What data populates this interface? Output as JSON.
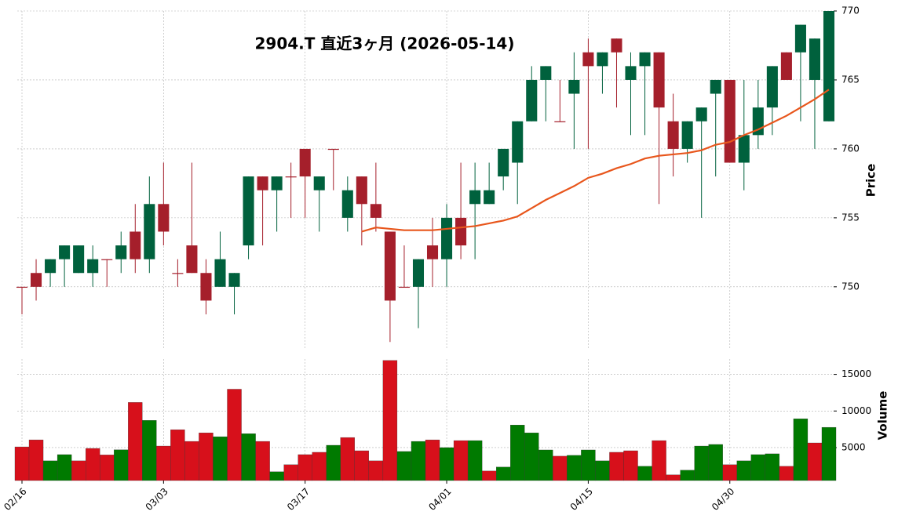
{
  "chart_data": {
    "type": "candlestick",
    "title": "2904.T  直近3ヶ月  (2026-05-14)",
    "ylabel": "Price",
    "volume_label": "Volume",
    "categories": [
      "02/16",
      null,
      null,
      null,
      null,
      null,
      null,
      null,
      null,
      null,
      "03/03",
      null,
      null,
      null,
      null,
      null,
      null,
      null,
      null,
      null,
      "03/17",
      null,
      null,
      null,
      null,
      null,
      null,
      null,
      null,
      null,
      "04/01",
      null,
      null,
      null,
      null,
      null,
      null,
      null,
      null,
      null,
      "04/15",
      null,
      null,
      null,
      null,
      null,
      null,
      null,
      null,
      null,
      "04/30",
      null,
      null,
      null,
      null,
      null,
      null,
      null
    ],
    "open": [
      750,
      751,
      751,
      752,
      751,
      751,
      752,
      752,
      754,
      752,
      756,
      751,
      753,
      751,
      750,
      750,
      753,
      758,
      757,
      758,
      760,
      757,
      760,
      755,
      758,
      756,
      754,
      750,
      750,
      753,
      752,
      755,
      756,
      756,
      758,
      759,
      762,
      765,
      762,
      764,
      767,
      766,
      768,
      765,
      766,
      767,
      762,
      760,
      762,
      764,
      765,
      759,
      761,
      763,
      767,
      767,
      765,
      762
    ],
    "high": [
      750,
      752,
      752,
      753,
      753,
      753,
      752,
      754,
      756,
      758,
      759,
      752,
      759,
      752,
      754,
      751,
      758,
      758,
      758,
      759,
      760,
      758,
      760,
      758,
      758,
      759,
      754,
      753,
      752,
      755,
      756,
      759,
      759,
      759,
      760,
      762,
      766,
      766,
      765,
      767,
      768,
      767,
      768,
      767,
      767,
      767,
      764,
      762,
      763,
      765,
      765,
      765,
      765,
      766,
      767,
      769,
      768,
      770
    ],
    "low": [
      748,
      749,
      750,
      750,
      751,
      750,
      750,
      751,
      751,
      751,
      753,
      750,
      751,
      748,
      750,
      748,
      752,
      753,
      754,
      755,
      755,
      754,
      757,
      754,
      753,
      754,
      746,
      750,
      747,
      750,
      750,
      752,
      752,
      756,
      757,
      756,
      762,
      762,
      762,
      760,
      760,
      764,
      763,
      761,
      761,
      756,
      758,
      759,
      755,
      758,
      759,
      757,
      760,
      761,
      765,
      762,
      760,
      762
    ],
    "close": [
      750,
      750,
      752,
      753,
      753,
      752,
      752,
      753,
      752,
      756,
      754,
      751,
      751,
      749,
      752,
      751,
      758,
      757,
      758,
      758,
      758,
      758,
      760,
      757,
      756,
      755,
      749,
      750,
      752,
      752,
      755,
      753,
      757,
      757,
      760,
      762,
      765,
      766,
      762,
      765,
      766,
      767,
      767,
      766,
      767,
      763,
      760,
      762,
      763,
      765,
      759,
      761,
      763,
      766,
      765,
      769,
      768,
      770
    ],
    "volume": [
      5100,
      6060,
      3190,
      4040,
      3190,
      4890,
      4000,
      4700,
      11170,
      8720,
      5210,
      7450,
      5850,
      7020,
      6490,
      12980,
      6910,
      5850,
      1700,
      2660,
      4040,
      4360,
      5320,
      6380,
      4570,
      3190,
      16910,
      4470,
      5850,
      6060,
      5000,
      5960,
      5960,
      1800,
      2340,
      8090,
      7020,
      4680,
      3830,
      3940,
      4680,
      3190,
      4360,
      4570,
      2450,
      5960,
      1280,
      1910,
      5210,
      5430,
      2660,
      3190,
      4040,
      4150,
      2450,
      8940,
      5640,
      7770
    ],
    "moving_average": {
      "color": "#e8561c",
      "values": [
        null,
        null,
        null,
        null,
        null,
        null,
        null,
        null,
        null,
        null,
        null,
        null,
        null,
        null,
        null,
        null,
        null,
        null,
        null,
        null,
        null,
        null,
        null,
        null,
        754.0,
        754.3,
        754.2,
        754.1,
        754.1,
        754.1,
        754.2,
        754.3,
        754.4,
        754.6,
        754.8,
        755.1,
        755.7,
        756.3,
        756.8,
        757.3,
        757.9,
        758.2,
        758.6,
        758.9,
        759.3,
        759.5,
        759.6,
        759.7,
        759.9,
        760.3,
        760.5,
        761.0,
        761.4,
        761.9,
        762.4,
        763.0,
        763.6,
        764.3
      ]
    },
    "up_color": "#00613d",
    "down_color": "#a51f2b",
    "volume_up_color": "#007a00",
    "volume_down_color": "#d7101b",
    "ylim": [
      745.5,
      770
    ],
    "yticks": [
      750,
      755,
      760,
      765,
      770
    ],
    "volume_ylim": [
      500,
      17100
    ],
    "volume_yticks": [
      5000,
      10000,
      15000
    ],
    "grid": true
  }
}
